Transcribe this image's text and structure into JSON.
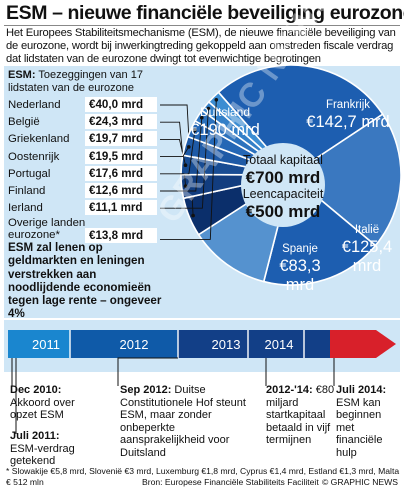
{
  "title": "ESM – nieuwe financiële beveiliging eurozone",
  "intro": "Het Europees Stabiliteitsmechanisme (ESM), de nieuwe financiële beveiliging van de eurozone, wordt bij inwerkingtreding gekoppeld aan omstreden fiscale verdrag dat lidstaten van de eurozone dwingt tot evenwichtige begrotingen",
  "esm_head": {
    "bold": "ESM:",
    "text": " Toezeggingen van 17 lidstaten van de eurozone"
  },
  "contributions": [
    {
      "country": "Nederland",
      "value": "€40,0 mrd"
    },
    {
      "country": "België",
      "value": "€24,3 mrd"
    },
    {
      "country": "Griekenland",
      "value": "€19,7 mrd"
    },
    {
      "country": "Oostenrijk",
      "value": "€19,5 mrd"
    },
    {
      "country": "Portugal",
      "value": "€17,6 mrd"
    },
    {
      "country": "Finland",
      "value": "€12,6 mrd"
    },
    {
      "country": "Ierland",
      "value": "€11,1 mrd"
    },
    {
      "country": "Overige landen eurozone*",
      "value": "€13,8 mrd"
    }
  ],
  "lending_note": "ESM zal lenen op geldmarkten en leningen verstrekken aan noodlijdende economieën tegen lage rente – ongeveer 4%",
  "center": {
    "total_label": "Totaal kapitaal",
    "total_value": "€700 mrd",
    "capacity_label": "Leencapaciteit",
    "capacity_value": "€500 mrd"
  },
  "chart_data": {
    "type": "pie",
    "unit": "€ mrd",
    "slices": [
      {
        "label": "Duitsland",
        "display": "€190 mrd",
        "value": 190.0
      },
      {
        "label": "Frankrijk",
        "display": "€142,7 mrd",
        "value": 142.7
      },
      {
        "label": "Italië",
        "display": "€125,4 mrd",
        "value": 125.4
      },
      {
        "label": "Spanje",
        "display": "€83,3 mrd",
        "value": 83.3
      },
      {
        "label": "Nederland",
        "value": 40.0
      },
      {
        "label": "België",
        "value": 24.3
      },
      {
        "label": "Griekenland",
        "value": 19.7
      },
      {
        "label": "Oostenrijk",
        "value": 19.5
      },
      {
        "label": "Portugal",
        "value": 17.6
      },
      {
        "label": "Finland",
        "value": 12.6
      },
      {
        "label": "Ierland",
        "value": 11.1
      },
      {
        "label": "Overige landen eurozone*",
        "value": 13.8
      }
    ],
    "colors": {
      "big": "#1d5eb0",
      "Frankrijk": "#3a78c0",
      "Spanje": "#5592cf",
      "small": [
        "#0b2f6b",
        "#123d7f",
        "#184c93",
        "#1e5aa6",
        "#2567b5",
        "#2c72bd",
        "#3480c8",
        "#3c8dd2"
      ]
    }
  },
  "timeline": {
    "years": [
      "2011",
      "2012",
      "2013",
      "2014"
    ],
    "colors": {
      "bar_2011": "#1a86cf",
      "bar_2012": "#0f5aa8",
      "bar_later": "#123f87",
      "arrow": "#d8202a"
    }
  },
  "notes": [
    {
      "bold": "Dec 2010:",
      "text": " Akkoord over opzet ESM"
    },
    {
      "bold": "Juli 2011:",
      "text": " ESM-verdrag getekend"
    },
    {
      "bold": "Sep 2012:",
      "text": " Duitse Constitutionele Hof steunt ESM, maar zonder onbeperkte aansprakelijkheid voor Duitsland"
    },
    {
      "bold": "2012-'14:",
      "text": " €80 miljard startkapitaal betaald in vijf termijnen"
    },
    {
      "bold": "Juli 2014:",
      "text": " ESM kan beginnen met financiële hulp"
    }
  ],
  "footer": {
    "small_print": "* Slowakije €5,8 mrd, Slovenië €3 mrd, Luxemburg €1,8 mrd, Cyprus €1,4 mrd, Estland €1,3 mrd, Malta € 512 mln",
    "source": "Bron: Europese Financiële Stabiliteits Faciliteit",
    "credit": "© GRAPHIC NEWS"
  },
  "watermark": "GRAPHIC NEWS"
}
